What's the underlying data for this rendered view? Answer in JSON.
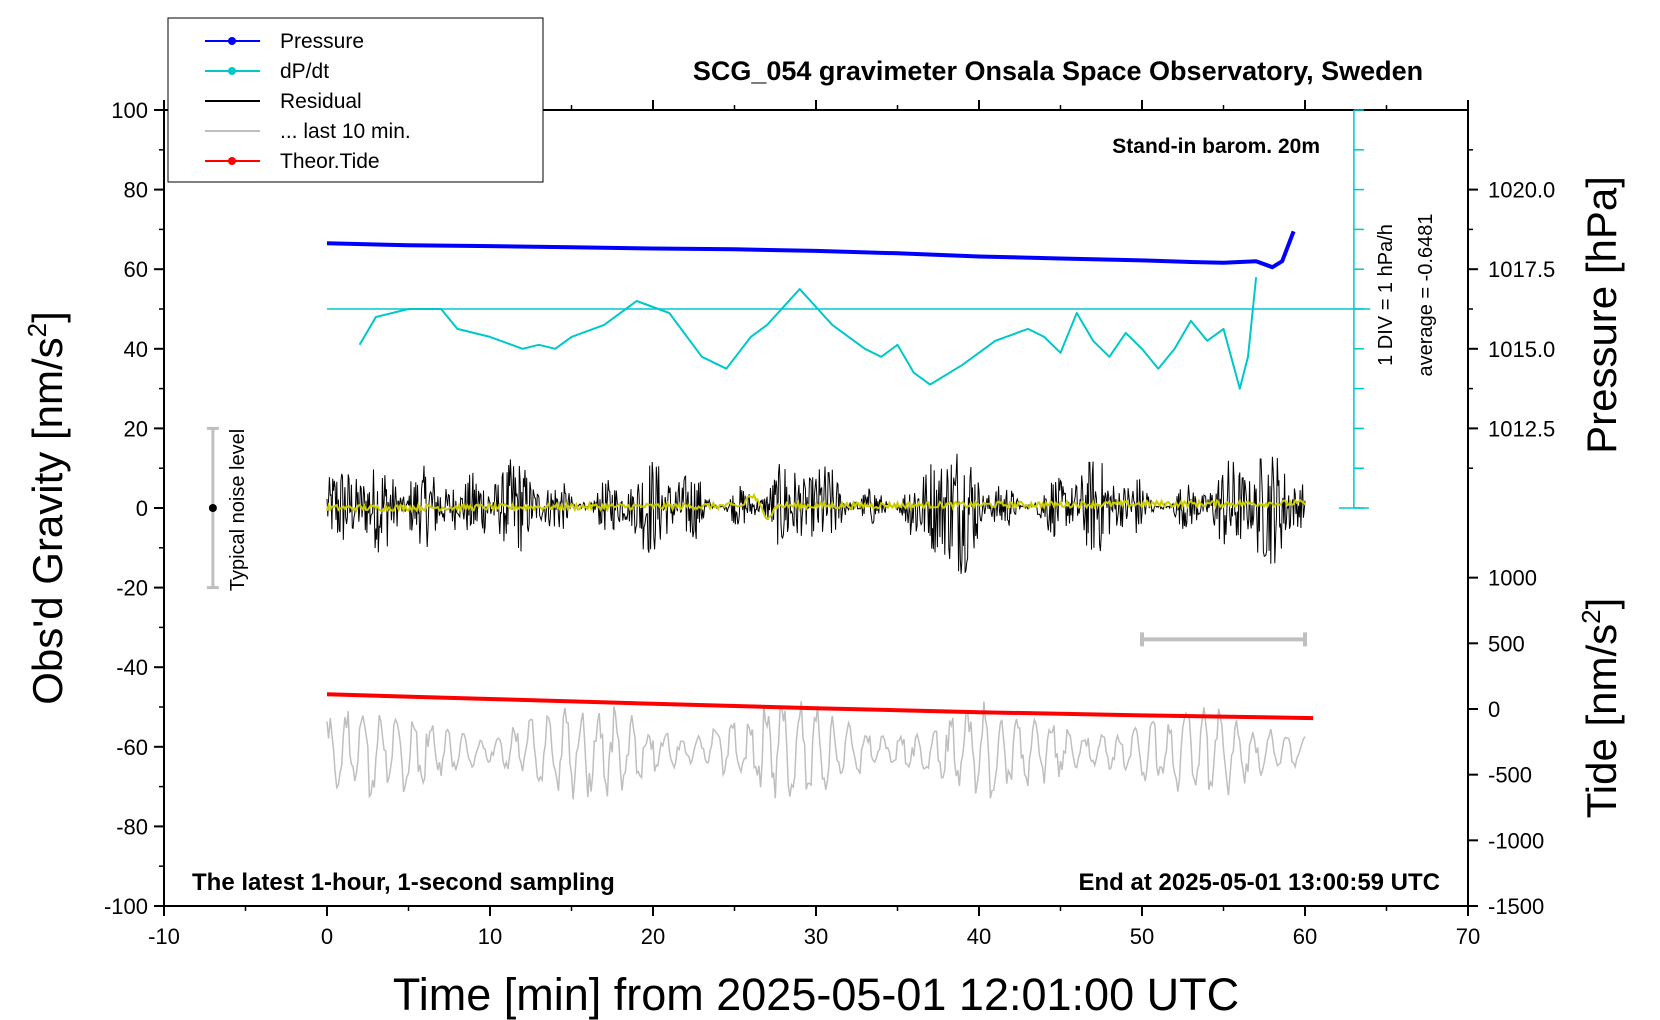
{
  "chart_data": {
    "type": "line",
    "title": "SCG_054 gravimeter Onsala Space Observatory, Sweden",
    "xlabel": "Time [min] from 2025-05-01 12:01:00 UTC",
    "ylabel_left": "Obs'd Gravity [nm/s",
    "ylabel_left_sup": "2",
    "ylabel_left_close": "]",
    "ylabel_right_top": "Pressure [hPa]",
    "ylabel_right_bottom": "Tide [nm/s",
    "ylabel_right_bottom_sup": "2",
    "ylabel_right_bottom_close": "]",
    "xlim": [
      -10,
      70
    ],
    "ylim": [
      -100,
      100
    ],
    "x_ticks": [
      -10,
      0,
      10,
      20,
      30,
      40,
      50,
      60,
      70
    ],
    "y_ticks": [
      -100,
      -80,
      -60,
      -40,
      -20,
      0,
      20,
      40,
      60,
      80,
      100
    ],
    "pressure_ticks": [
      "1020.0",
      "1017.5",
      "1015.0",
      "1012.5"
    ],
    "pressure_tick_positions_gravity_units": [
      80,
      60,
      40,
      20
    ],
    "tide_ticks": [
      "1000",
      "500",
      "0",
      "-500",
      "-1000",
      "-1500"
    ],
    "tide_tick_positions_gravity_units": [
      -17.5,
      -34,
      -50.5,
      -67,
      -83.5,
      -100
    ],
    "legend": [
      {
        "label": "Pressure",
        "color": "#0000ff",
        "marker": true
      },
      {
        "label": "dP/dt",
        "color": "#00c8c8",
        "marker": true
      },
      {
        "label": "Residual",
        "color": "#000000",
        "marker": false
      },
      {
        "label": "... last 10 min.",
        "color": "#bfbfbf",
        "marker": false
      },
      {
        "label": "Theor.Tide",
        "color": "#ff0000",
        "marker": true
      }
    ],
    "annotations": {
      "barom": "Stand-in barom. 20m",
      "div": "1 DIV = 1 hPa/h",
      "average": "average = -0.6481",
      "noise": "Typical noise level",
      "latest": "The latest 1-hour, 1-second sampling",
      "end": "End at 2025-05-01 13:00:59 UTC"
    },
    "series": [
      {
        "name": "Pressure",
        "color": "#0000ff",
        "x": [
          0,
          5,
          10,
          15,
          20,
          25,
          30,
          35,
          40,
          45,
          50,
          53,
          55,
          56,
          57,
          58,
          58.6,
          59.3
        ],
        "y": [
          66.5,
          66,
          65.8,
          65.5,
          65.2,
          65,
          64.6,
          64,
          63.2,
          62.7,
          62.2,
          61.8,
          61.6,
          61.8,
          62,
          60.5,
          62,
          69.5
        ]
      },
      {
        "name": "dP/dt",
        "color": "#00c8c8",
        "x": [
          2,
          3,
          5,
          7,
          8,
          10,
          12,
          13,
          14,
          15,
          17,
          19,
          21,
          23,
          24.5,
          26,
          27,
          29,
          31,
          33,
          34,
          35,
          36,
          37,
          39,
          41,
          43,
          44,
          45,
          46,
          47,
          48,
          49,
          50,
          51,
          52,
          53,
          54,
          55,
          56,
          56.5,
          57
        ],
        "y": [
          41,
          48,
          50,
          50,
          45,
          43,
          40,
          41,
          40,
          43,
          46,
          52,
          49,
          38,
          35,
          43,
          46,
          55,
          46,
          40,
          38,
          41,
          34,
          31,
          36,
          42,
          45,
          43,
          39,
          49,
          42,
          38,
          44,
          40,
          35,
          40,
          47,
          42,
          45,
          30,
          38,
          58
        ]
      },
      {
        "name": "Theor.Tide",
        "color": "#ff0000",
        "x": [
          0,
          10,
          20,
          30,
          40,
          50,
          60.5
        ],
        "y": [
          -46.8,
          -48,
          -49.2,
          -50.3,
          -51.3,
          -52.1,
          -52.8
        ]
      }
    ],
    "noise_bar": {
      "x": -7,
      "y_min": -20,
      "y_max": 20,
      "center": 0
    },
    "last10_bar": {
      "x_min": 50,
      "x_max": 60,
      "y": -33
    },
    "hline_dpdt": 50,
    "dpdt_axis_x": 63
  }
}
